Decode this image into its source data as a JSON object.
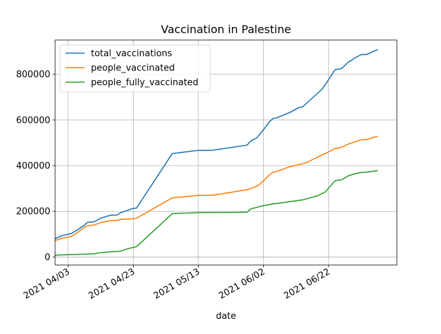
{
  "chart_data": {
    "type": "line",
    "title": "Vaccination in Palestine",
    "xlabel": "date",
    "ylabel": "",
    "x_type": "date",
    "xlim": [
      "2021-03-30",
      "2021-07-13"
    ],
    "ylim": [
      -35000,
      950000
    ],
    "grid": true,
    "legend_position": "upper-left",
    "x_ticks": [
      {
        "date": "2021-04-03",
        "label": "2021 04/03"
      },
      {
        "date": "2021-04-23",
        "label": "2021 04/23"
      },
      {
        "date": "2021-05-13",
        "label": "2021 05/13"
      },
      {
        "date": "2021-06-02",
        "label": "2021 06/02"
      },
      {
        "date": "2021-06-22",
        "label": "2021 06/22"
      }
    ],
    "y_ticks": [
      {
        "value": 0,
        "label": "0"
      },
      {
        "value": 200000,
        "label": "200000"
      },
      {
        "value": 400000,
        "label": "400000"
      },
      {
        "value": 600000,
        "label": "600000"
      },
      {
        "value": 800000,
        "label": "800000"
      }
    ],
    "series": [
      {
        "name": "total_vaccinations",
        "color": "#1f77b4",
        "points": [
          [
            "2021-03-30",
            80000
          ],
          [
            "2021-04-01",
            93000
          ],
          [
            "2021-04-04",
            103000
          ],
          [
            "2021-04-06",
            120000
          ],
          [
            "2021-04-08",
            140000
          ],
          [
            "2021-04-09",
            152000
          ],
          [
            "2021-04-11",
            154000
          ],
          [
            "2021-04-13",
            170000
          ],
          [
            "2021-04-16",
            183000
          ],
          [
            "2021-04-18",
            184000
          ],
          [
            "2021-04-19",
            193000
          ],
          [
            "2021-04-23",
            213000
          ],
          [
            "2021-04-24",
            214000
          ],
          [
            "2021-05-05",
            453000
          ],
          [
            "2021-05-09",
            460000
          ],
          [
            "2021-05-13",
            467000
          ],
          [
            "2021-05-17",
            467000
          ],
          [
            "2021-05-19",
            471000
          ],
          [
            "2021-05-20",
            473000
          ],
          [
            "2021-05-28",
            490000
          ],
          [
            "2021-05-29",
            507000
          ],
          [
            "2021-05-31",
            522000
          ],
          [
            "2021-06-01",
            540000
          ],
          [
            "2021-06-02",
            557000
          ],
          [
            "2021-06-04",
            595000
          ],
          [
            "2021-06-05",
            607000
          ],
          [
            "2021-06-06",
            609000
          ],
          [
            "2021-06-10",
            632000
          ],
          [
            "2021-06-13",
            655000
          ],
          [
            "2021-06-14",
            657000
          ],
          [
            "2021-06-15",
            670000
          ],
          [
            "2021-06-20",
            735000
          ],
          [
            "2021-06-21",
            755000
          ],
          [
            "2021-06-24",
            820000
          ],
          [
            "2021-06-26",
            825000
          ],
          [
            "2021-06-28",
            852000
          ],
          [
            "2021-06-30",
            871000
          ],
          [
            "2021-07-02",
            886000
          ],
          [
            "2021-07-04",
            888000
          ],
          [
            "2021-07-06",
            902000
          ],
          [
            "2021-07-07",
            907000
          ]
        ]
      },
      {
        "name": "people_vaccinated",
        "color": "#ff7f0e",
        "points": [
          [
            "2021-03-30",
            72000
          ],
          [
            "2021-04-01",
            82000
          ],
          [
            "2021-04-03",
            87000
          ],
          [
            "2021-04-04",
            90000
          ],
          [
            "2021-04-06",
            108000
          ],
          [
            "2021-04-08",
            130000
          ],
          [
            "2021-04-09",
            137000
          ],
          [
            "2021-04-11",
            140000
          ],
          [
            "2021-04-13",
            151000
          ],
          [
            "2021-04-16",
            159000
          ],
          [
            "2021-04-18",
            160000
          ],
          [
            "2021-04-19",
            165000
          ],
          [
            "2021-04-23",
            167000
          ],
          [
            "2021-04-24",
            170000
          ],
          [
            "2021-05-05",
            259000
          ],
          [
            "2021-05-09",
            264000
          ],
          [
            "2021-05-13",
            270000
          ],
          [
            "2021-05-17",
            270000
          ],
          [
            "2021-05-20",
            276000
          ],
          [
            "2021-05-28",
            295000
          ],
          [
            "2021-05-31",
            310000
          ],
          [
            "2021-06-01",
            320000
          ],
          [
            "2021-06-02",
            333000
          ],
          [
            "2021-06-04",
            362000
          ],
          [
            "2021-06-05",
            372000
          ],
          [
            "2021-06-06",
            374000
          ],
          [
            "2021-06-10",
            395000
          ],
          [
            "2021-06-13",
            405000
          ],
          [
            "2021-06-14",
            408000
          ],
          [
            "2021-06-15",
            412000
          ],
          [
            "2021-06-19",
            440000
          ],
          [
            "2021-06-21",
            453000
          ],
          [
            "2021-06-24",
            475000
          ],
          [
            "2021-06-26",
            480000
          ],
          [
            "2021-06-28",
            494000
          ],
          [
            "2021-07-02",
            513000
          ],
          [
            "2021-07-04",
            515000
          ],
          [
            "2021-07-06",
            525000
          ],
          [
            "2021-07-07",
            527000
          ]
        ]
      },
      {
        "name": "people_fully_vaccinated",
        "color": "#2ca02c",
        "points": [
          [
            "2021-03-30",
            8000
          ],
          [
            "2021-04-03",
            10000
          ],
          [
            "2021-04-04",
            11000
          ],
          [
            "2021-04-08",
            12000
          ],
          [
            "2021-04-11",
            14000
          ],
          [
            "2021-04-13",
            19000
          ],
          [
            "2021-04-16",
            23000
          ],
          [
            "2021-04-19",
            25000
          ],
          [
            "2021-04-21",
            35000
          ],
          [
            "2021-04-23",
            42000
          ],
          [
            "2021-04-24",
            45000
          ],
          [
            "2021-05-05",
            190000
          ],
          [
            "2021-05-09",
            192000
          ],
          [
            "2021-05-13",
            194000
          ],
          [
            "2021-05-20",
            195000
          ],
          [
            "2021-05-28",
            196000
          ],
          [
            "2021-05-29",
            210000
          ],
          [
            "2021-06-02",
            225000
          ],
          [
            "2021-06-04",
            230000
          ],
          [
            "2021-06-05",
            233000
          ],
          [
            "2021-06-06",
            234000
          ],
          [
            "2021-06-13",
            248000
          ],
          [
            "2021-06-14",
            250000
          ],
          [
            "2021-06-15",
            254000
          ],
          [
            "2021-06-18",
            265000
          ],
          [
            "2021-06-19",
            270000
          ],
          [
            "2021-06-21",
            285000
          ],
          [
            "2021-06-24",
            334000
          ],
          [
            "2021-06-26",
            338000
          ],
          [
            "2021-06-28",
            355000
          ],
          [
            "2021-06-30",
            364000
          ],
          [
            "2021-07-02",
            370000
          ],
          [
            "2021-07-04",
            372000
          ],
          [
            "2021-07-07",
            378000
          ]
        ]
      }
    ]
  }
}
